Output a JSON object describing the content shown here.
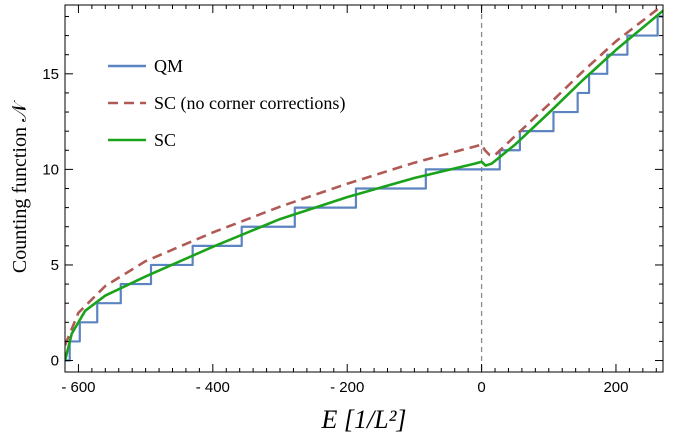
{
  "chart_data": {
    "type": "line",
    "xlabel": "E    [1/L²]",
    "ylabel": "Counting function 𝒩",
    "xlim": [
      -620,
      270
    ],
    "ylim": [
      -0.6,
      18.6
    ],
    "x_ticks": [
      -600,
      -400,
      -200,
      0,
      200
    ],
    "x_tick_labels": [
      "- 600",
      "- 400",
      "- 200",
      "0",
      "200"
    ],
    "y_ticks": [
      0,
      5,
      10,
      15
    ],
    "y_tick_labels": [
      "0",
      "5",
      "10",
      "15"
    ],
    "vertical_reference_line_x": 0,
    "grid": false,
    "legend_position": "top-left",
    "series": [
      {
        "name": "QM",
        "style": "step",
        "color": "#5b84c0",
        "steps": [
          {
            "x": -620,
            "y": 0
          },
          {
            "x": -613,
            "y": 1
          },
          {
            "x": -598,
            "y": 2
          },
          {
            "x": -572,
            "y": 3
          },
          {
            "x": -537,
            "y": 4
          },
          {
            "x": -492,
            "y": 5
          },
          {
            "x": -430,
            "y": 6
          },
          {
            "x": -357,
            "y": 7
          },
          {
            "x": -278,
            "y": 8
          },
          {
            "x": -187,
            "y": 9
          },
          {
            "x": -83,
            "y": 10
          },
          {
            "x": 27,
            "y": 11
          },
          {
            "x": 57,
            "y": 12
          },
          {
            "x": 107,
            "y": 13
          },
          {
            "x": 143,
            "y": 14
          },
          {
            "x": 160,
            "y": 15
          },
          {
            "x": 187,
            "y": 16
          },
          {
            "x": 217,
            "y": 17
          },
          {
            "x": 262,
            "y": 18
          },
          {
            "x": 270,
            "y": 18
          }
        ]
      },
      {
        "name": "SC (no corner corrections)",
        "style": "dashed",
        "color": "#b05a55",
        "points": [
          {
            "x": -620,
            "y": 0.8
          },
          {
            "x": -600,
            "y": 2.5
          },
          {
            "x": -560,
            "y": 3.9
          },
          {
            "x": -500,
            "y": 5.2
          },
          {
            "x": -400,
            "y": 6.7
          },
          {
            "x": -300,
            "y": 8.05
          },
          {
            "x": -200,
            "y": 9.25
          },
          {
            "x": -100,
            "y": 10.35
          },
          {
            "x": -10,
            "y": 11.2
          },
          {
            "x": 0,
            "y": 11.3
          },
          {
            "x": 5,
            "y": 11.0
          },
          {
            "x": 12,
            "y": 10.75
          },
          {
            "x": 20,
            "y": 10.75
          },
          {
            "x": 50,
            "y": 11.75
          },
          {
            "x": 100,
            "y": 13.4
          },
          {
            "x": 150,
            "y": 15.1
          },
          {
            "x": 200,
            "y": 16.7
          },
          {
            "x": 270,
            "y": 18.6
          }
        ]
      },
      {
        "name": "SC",
        "style": "solid",
        "color": "#1aa31a",
        "points": [
          {
            "x": -620,
            "y": 0.0
          },
          {
            "x": -610,
            "y": 1.4
          },
          {
            "x": -590,
            "y": 2.6
          },
          {
            "x": -560,
            "y": 3.4
          },
          {
            "x": -500,
            "y": 4.4
          },
          {
            "x": -400,
            "y": 5.95
          },
          {
            "x": -300,
            "y": 7.4
          },
          {
            "x": -200,
            "y": 8.55
          },
          {
            "x": -100,
            "y": 9.55
          },
          {
            "x": -10,
            "y": 10.3
          },
          {
            "x": 0,
            "y": 10.4
          },
          {
            "x": 6,
            "y": 10.2
          },
          {
            "x": 15,
            "y": 10.3
          },
          {
            "x": 50,
            "y": 11.3
          },
          {
            "x": 100,
            "y": 12.95
          },
          {
            "x": 150,
            "y": 14.65
          },
          {
            "x": 200,
            "y": 16.25
          },
          {
            "x": 270,
            "y": 18.3
          }
        ]
      }
    ]
  }
}
